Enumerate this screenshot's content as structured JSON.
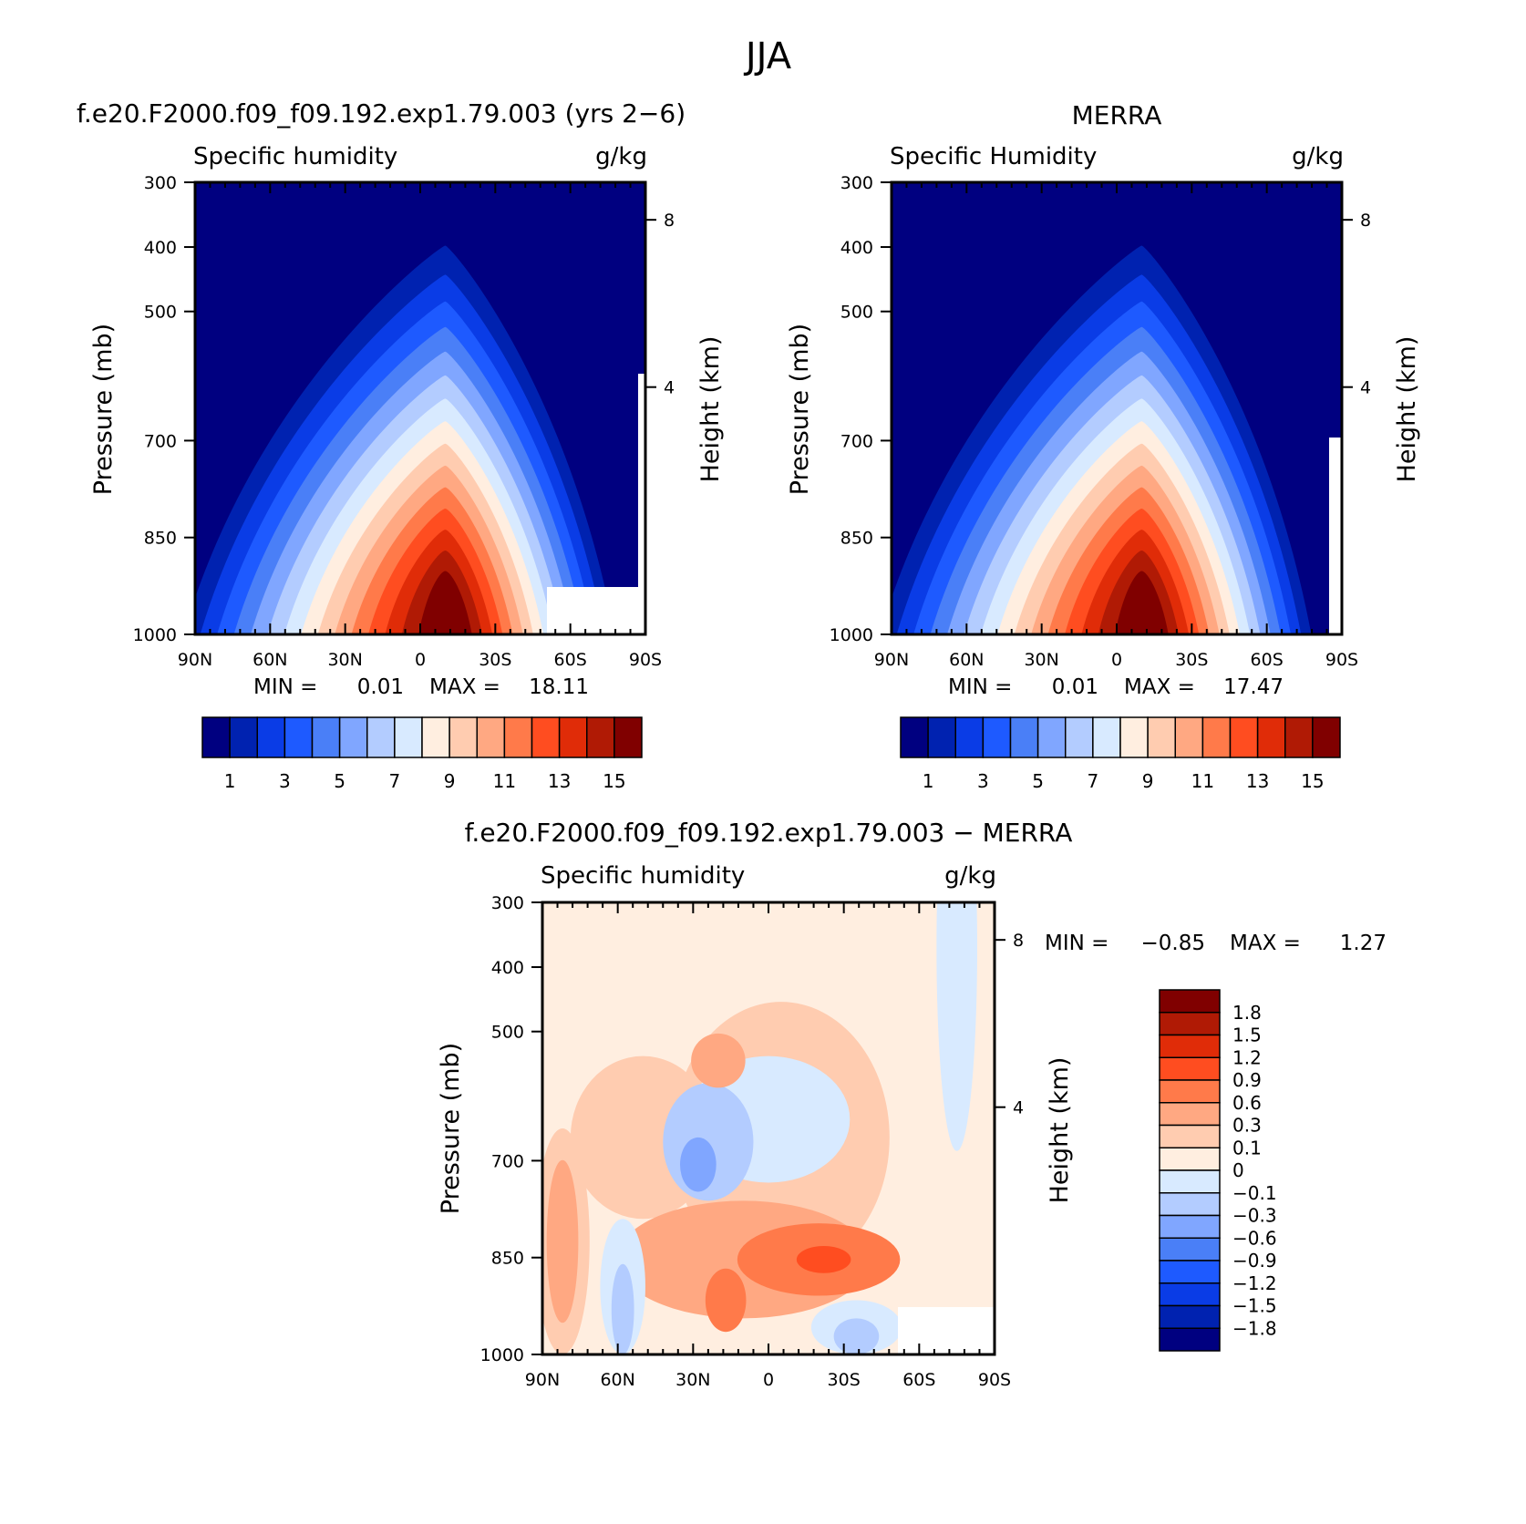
{
  "figure": {
    "title": "JJA"
  },
  "colors": {
    "seq": [
      "#000080",
      "#0022b0",
      "#0a3ce6",
      "#1e5aff",
      "#4a7ff7",
      "#80a6ff",
      "#b3ccff",
      "#d8eaff",
      "#ffeee0",
      "#ffccb0",
      "#ffa882",
      "#ff7a4a",
      "#ff4d20",
      "#e02c08",
      "#b01a05",
      "#800000"
    ],
    "div_bottom_up": [
      "#000080",
      "#0022b0",
      "#0a3ce6",
      "#1e5aff",
      "#4a7ff7",
      "#80a6ff",
      "#b3ccff",
      "#d8eaff",
      "#ffeee0",
      "#ffccb0",
      "#ffa882",
      "#ff7a4a",
      "#ff4d20",
      "#e02c08",
      "#b01a05",
      "#800000"
    ]
  },
  "chart_data": [
    {
      "type": "heatmap",
      "case_title": "f.e20.F2000.f09_f09.192.exp1.79.003 (yrs 2−6)",
      "variable": "Specific humidity",
      "units": "g/kg",
      "ylabel": "Pressure (mb)",
      "y2label": "Height (km)",
      "x_ticks": [
        "90N",
        "60N",
        "30N",
        "0",
        "30S",
        "60S",
        "90S"
      ],
      "y_ticks": [
        "300",
        "400",
        "500",
        "700",
        "850",
        "1000"
      ],
      "y2_ticks": [
        "8",
        "4"
      ],
      "ylim": [
        1000,
        300
      ],
      "min_label": "MIN =",
      "min_value": "0.01",
      "max_label": "MAX =",
      "max_value": "18.11",
      "colorbar_labels": [
        "1",
        "3",
        "5",
        "7",
        "9",
        "11",
        "13",
        "15"
      ],
      "peak_lat": -10
    },
    {
      "type": "heatmap",
      "case_title": "MERRA",
      "variable": "Specific Humidity",
      "units": "g/kg",
      "ylabel": "Pressure (mb)",
      "y2label": "Height (km)",
      "x_ticks": [
        "90N",
        "60N",
        "30N",
        "0",
        "30S",
        "60S",
        "90S"
      ],
      "y_ticks": [
        "300",
        "400",
        "500",
        "700",
        "850",
        "1000"
      ],
      "y2_ticks": [
        "8",
        "4"
      ],
      "ylim": [
        1000,
        300
      ],
      "min_label": "MIN =",
      "min_value": "0.01",
      "max_label": "MAX =",
      "max_value": "17.47",
      "colorbar_labels": [
        "1",
        "3",
        "5",
        "7",
        "9",
        "11",
        "13",
        "15"
      ],
      "peak_lat": -10
    },
    {
      "type": "heatmap",
      "case_title": "f.e20.F2000.f09_f09.192.exp1.79.003 − MERRA",
      "variable": "Specific humidity",
      "units": "g/kg",
      "ylabel": "Pressure (mb)",
      "y2label": "Height (km)",
      "x_ticks": [
        "90N",
        "60N",
        "30N",
        "0",
        "30S",
        "60S",
        "90S"
      ],
      "y_ticks": [
        "300",
        "400",
        "500",
        "700",
        "850",
        "1000"
      ],
      "y2_ticks": [
        "8",
        "4"
      ],
      "ylim": [
        1000,
        300
      ],
      "min_label": "MIN =",
      "min_value": "−0.85",
      "max_label": "MAX =",
      "max_value": "1.27",
      "colorbar_labels": [
        "1.8",
        "1.5",
        "1.2",
        "0.9",
        "0.6",
        "0.3",
        "0.1",
        "0",
        "−0.1",
        "−0.3",
        "−0.6",
        "−0.9",
        "−1.2",
        "−1.5",
        "−1.8"
      ]
    }
  ]
}
